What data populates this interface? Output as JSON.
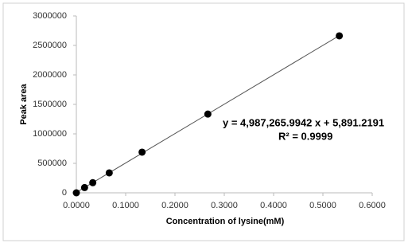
{
  "chart_data": {
    "type": "scatter",
    "x_label": "Concentration of lysine(mM)",
    "y_label": "Peak area",
    "series": [
      {
        "name": "Peak area",
        "color": "#000000",
        "x": [
          0.0,
          0.0167,
          0.0333,
          0.0667,
          0.1333,
          0.2667,
          0.5333
        ],
        "values": [
          0,
          89000,
          172000,
          338000,
          690000,
          1336000,
          2663000
        ]
      }
    ],
    "xlim": [
      0,
      0.6
    ],
    "xticks": [
      {
        "value": 0,
        "label": "0.0000"
      },
      {
        "value": 0.1,
        "label": "0.1000"
      },
      {
        "value": 0.2,
        "label": "0.2000"
      },
      {
        "value": 0.3,
        "label": "0.3000"
      },
      {
        "value": 0.4,
        "label": "0.4000"
      },
      {
        "value": 0.5,
        "label": "0.5000"
      },
      {
        "value": 0.6,
        "label": "0.6000"
      }
    ],
    "ylim": [
      0,
      3000000
    ],
    "yticks": [
      0,
      500000,
      1000000,
      1500000,
      2000000,
      2500000,
      3000000
    ],
    "trendline": true,
    "trendline_color": "#555555",
    "annotations": [
      "y = 4,987,265.9942 x + 5,891.2191",
      "R² = 0.9999"
    ]
  }
}
